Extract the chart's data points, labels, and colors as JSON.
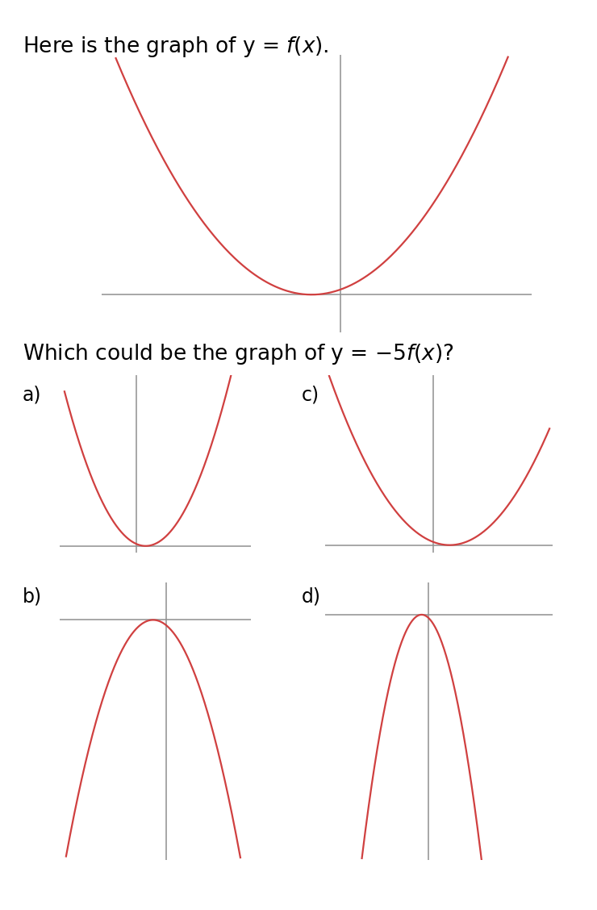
{
  "bg_color": "#ffffff",
  "curve_color": "#d04040",
  "axis_color": "#909090",
  "title1": "Here is the graph of y = $f(x)$.",
  "title2": "Which could be the graph of y = $-5f(x)$?",
  "labels": [
    "a)",
    "c)",
    "b)",
    "d)"
  ]
}
